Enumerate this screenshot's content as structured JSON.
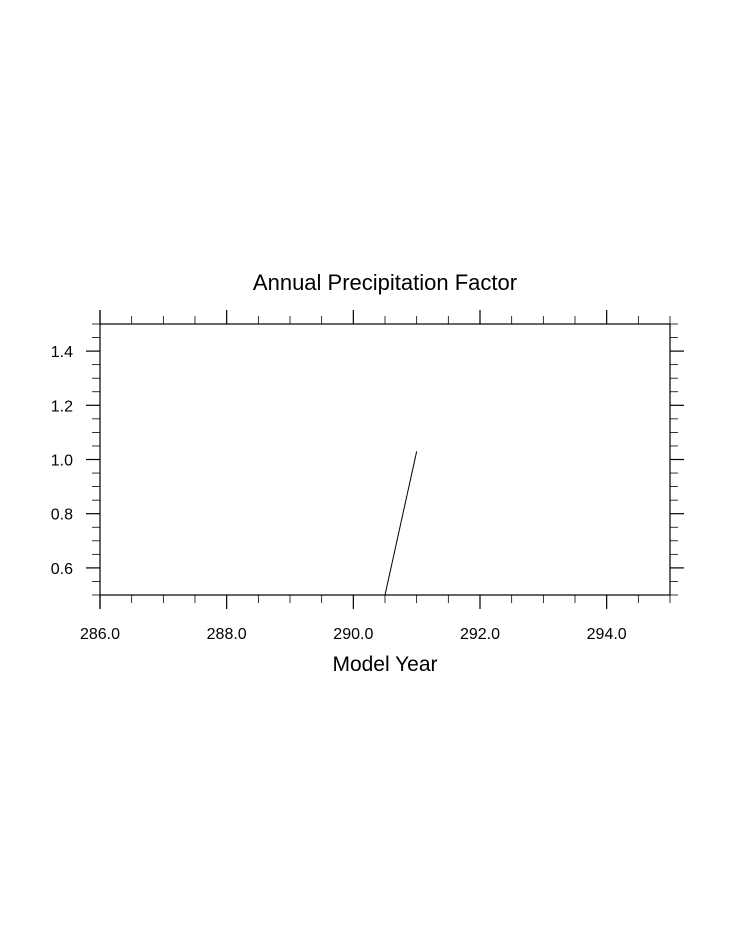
{
  "chart_data": {
    "type": "line",
    "title": "Annual Precipitation Factor",
    "xlabel": "Model Year",
    "ylabel": "",
    "xlim": [
      286.0,
      295.0
    ],
    "ylim": [
      0.5,
      1.5
    ],
    "xticks": [
      286.0,
      288.0,
      290.0,
      292.0,
      294.0
    ],
    "xtick_labels": [
      "286.0",
      "288.0",
      "290.0",
      "292.0",
      "294.0"
    ],
    "x_minor_step": 0.5,
    "yticks": [
      0.6,
      0.8,
      1.0,
      1.2,
      1.4
    ],
    "ytick_labels": [
      "0.6",
      "0.8",
      "1.0",
      "1.2",
      "1.4"
    ],
    "y_minor_step": 0.05,
    "grid": false,
    "series": [
      {
        "x": [
          290.5,
          291.0
        ],
        "y": [
          0.5,
          1.03
        ]
      }
    ]
  }
}
